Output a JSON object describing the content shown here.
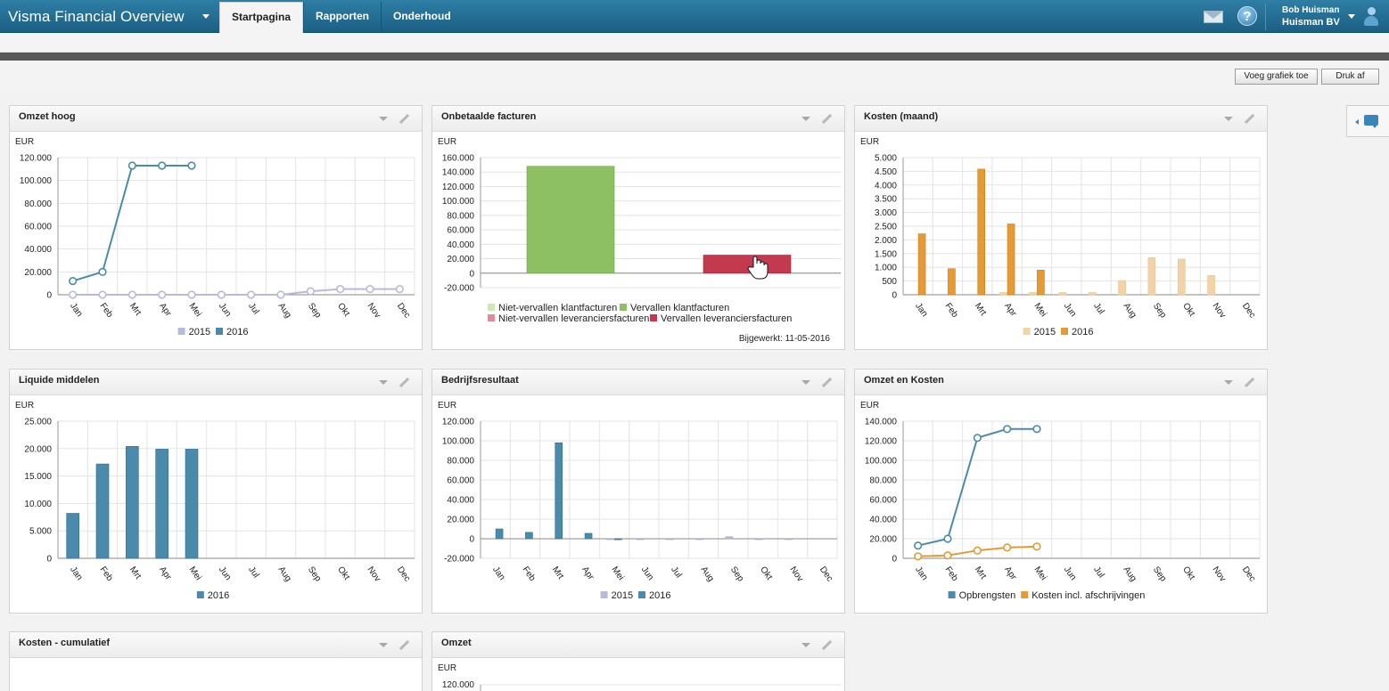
{
  "app": {
    "title": "Visma Financial Overview",
    "tabs": [
      "Startpagina",
      "Rapporten",
      "Onderhoud"
    ],
    "user_name": "Bob Huisman",
    "company": "Huisman BV"
  },
  "toolbar": {
    "add_chart": "Voeg grafiek toe",
    "print": "Druk af"
  },
  "months": [
    "Jan",
    "Feb",
    "Mrt",
    "Apr",
    "Mei",
    "Jun",
    "Jul",
    "Aug",
    "Sep",
    "Okt",
    "Nov",
    "Dec"
  ],
  "colors": {
    "teal": "#4a8bab",
    "lilac": "#b9bad9",
    "orange": "#e69a36",
    "peach": "#f2d3a7",
    "green": "#8cc063",
    "red": "#c33a4e"
  },
  "widgets": {
    "omzet_hoog": {
      "title": "Omzet hoog"
    },
    "onbetaalde": {
      "title": "Onbetaalde facturen",
      "updated": "Bijgewerkt: 11-05-2016"
    },
    "kosten_maand": {
      "title": "Kosten (maand)"
    },
    "liquide": {
      "title": "Liquide middelen"
    },
    "bedrijfsresultaat": {
      "title": "Bedrijfsresultaat"
    },
    "omzet_kosten": {
      "title": "Omzet en Kosten"
    },
    "kosten_cumulatief": {
      "title": "Kosten - cumulatief"
    },
    "omzet": {
      "title": "Omzet"
    }
  },
  "chart_data": [
    {
      "id": "omzet_hoog",
      "type": "line",
      "ylabel": "EUR",
      "categories": [
        "Jan",
        "Feb",
        "Mrt",
        "Apr",
        "Mei",
        "Jun",
        "Jul",
        "Aug",
        "Sep",
        "Okt",
        "Nov",
        "Dec"
      ],
      "ylim": [
        0,
        120000
      ],
      "yticks": [
        0,
        20000,
        40000,
        60000,
        80000,
        100000,
        120000
      ],
      "series": [
        {
          "name": "2015",
          "values": [
            0,
            0,
            0,
            0,
            0,
            0,
            0,
            0,
            3000,
            5000,
            5000,
            5000
          ]
        },
        {
          "name": "2016",
          "values": [
            12000,
            20000,
            113000,
            113000,
            113000,
            null,
            null,
            null,
            null,
            null,
            null,
            null
          ]
        }
      ]
    },
    {
      "id": "onbetaalde",
      "type": "bar",
      "ylabel": "EUR",
      "ylim": [
        -20000,
        160000
      ],
      "yticks": [
        -20000,
        0,
        20000,
        40000,
        60000,
        80000,
        100000,
        120000,
        140000,
        160000
      ],
      "legend": [
        "Niet-vervallen klantfacturen",
        "Vervallen klantfacturen",
        "Niet-vervallen leveranciersfacturen",
        "Vervallen leveranciersfacturen"
      ],
      "values": [
        {
          "series": "Vervallen klantfacturen",
          "value": 148000
        },
        {
          "series": "Vervallen leveranciersfacturen",
          "value": 25000
        }
      ]
    },
    {
      "id": "kosten_maand",
      "type": "bar",
      "ylabel": "EUR",
      "categories": [
        "Jan",
        "Feb",
        "Mrt",
        "Apr",
        "Mei",
        "Jun",
        "Jul",
        "Aug",
        "Sep",
        "Okt",
        "Nov",
        "Dec"
      ],
      "ylim": [
        0,
        5000
      ],
      "yticks": [
        0,
        500,
        1000,
        1500,
        2000,
        2500,
        3000,
        3500,
        4000,
        4500,
        5000
      ],
      "series": [
        {
          "name": "2015",
          "values": [
            0,
            0,
            0,
            80,
            80,
            80,
            80,
            520,
            1350,
            1300,
            700,
            0
          ]
        },
        {
          "name": "2016",
          "values": [
            2220,
            950,
            4580,
            2580,
            900,
            0,
            0,
            0,
            0,
            0,
            0,
            0
          ]
        }
      ]
    },
    {
      "id": "liquide",
      "type": "bar",
      "ylabel": "EUR",
      "categories": [
        "Jan",
        "Feb",
        "Mrt",
        "Apr",
        "Mei",
        "Jun",
        "Jul",
        "Aug",
        "Sep",
        "Okt",
        "Nov",
        "Dec"
      ],
      "ylim": [
        0,
        25000
      ],
      "yticks": [
        0,
        5000,
        10000,
        15000,
        20000,
        25000
      ],
      "series": [
        {
          "name": "2016",
          "values": [
            8200,
            17200,
            20400,
            19900,
            19900,
            0,
            0,
            0,
            0,
            0,
            0,
            0
          ]
        }
      ]
    },
    {
      "id": "bedrijfsresultaat",
      "type": "bar",
      "ylabel": "EUR",
      "categories": [
        "Jan",
        "Feb",
        "Mrt",
        "Apr",
        "Mei",
        "Jun",
        "Jul",
        "Aug",
        "Sep",
        "Okt",
        "Nov",
        "Dec"
      ],
      "ylim": [
        -20000,
        120000
      ],
      "yticks": [
        -20000,
        0,
        20000,
        40000,
        60000,
        80000,
        100000,
        120000
      ],
      "series": [
        {
          "name": "2015",
          "values": [
            0,
            0,
            0,
            0,
            -500,
            -500,
            -500,
            -500,
            2000,
            -500,
            -500,
            0
          ]
        },
        {
          "name": "2016",
          "values": [
            10000,
            6500,
            98000,
            5500,
            -1000,
            0,
            0,
            0,
            0,
            0,
            0,
            0
          ]
        }
      ]
    },
    {
      "id": "omzet_kosten",
      "type": "line",
      "ylabel": "EUR",
      "categories": [
        "Jan",
        "Feb",
        "Mrt",
        "Apr",
        "Mei",
        "Jun",
        "Jul",
        "Aug",
        "Sep",
        "Okt",
        "Nov",
        "Dec"
      ],
      "ylim": [
        0,
        140000
      ],
      "yticks": [
        0,
        20000,
        40000,
        60000,
        80000,
        100000,
        120000,
        140000
      ],
      "series": [
        {
          "name": "Opbrengsten",
          "values": [
            13000,
            20000,
            123000,
            132000,
            132000,
            null,
            null,
            null,
            null,
            null,
            null,
            null
          ]
        },
        {
          "name": "Kosten incl. afschrijvingen",
          "values": [
            2000,
            3000,
            8000,
            11000,
            12000,
            null,
            null,
            null,
            null,
            null,
            null,
            null
          ]
        }
      ]
    },
    {
      "id": "omzet",
      "type": "bar",
      "ylabel": "EUR",
      "yticks": [
        120000
      ]
    }
  ]
}
